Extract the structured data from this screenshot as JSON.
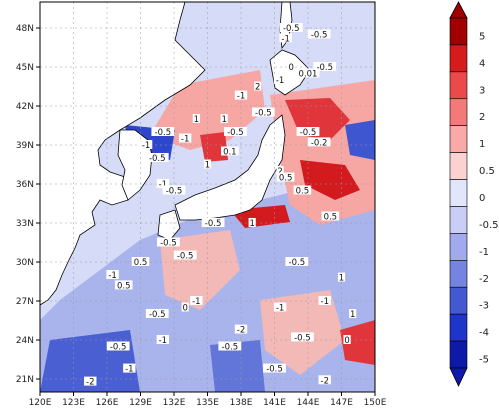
{
  "map": {
    "lon_ticks": [
      "120E",
      "123E",
      "126E",
      "129E",
      "132E",
      "135E",
      "138E",
      "141E",
      "144E",
      "147E",
      "150E"
    ],
    "lat_ticks": [
      "21N",
      "24N",
      "27N",
      "30N",
      "33N",
      "36N",
      "39N",
      "42N",
      "45N",
      "48N"
    ],
    "extent": {
      "lon": [
        120,
        150
      ],
      "lat": [
        20,
        50
      ]
    },
    "land_color": "#ffffff",
    "coastline_color": "#000000",
    "gridlines": "dashed"
  },
  "colorbar": {
    "labels": [
      "5",
      "4",
      "3",
      "2",
      "1",
      "0.5",
      "0",
      "-0.5",
      "-1",
      "-2",
      "-3",
      "-4",
      "-5"
    ],
    "colors": [
      "#a00000",
      "#d41c1c",
      "#ec4a4a",
      "#f47a7a",
      "#f8aaa8",
      "#fbd2d0",
      "#e2e6fb",
      "#c8cef5",
      "#a0aaec",
      "#7484e0",
      "#4458d2",
      "#1f34c8",
      "#0d1aa8"
    ]
  },
  "contour_labels": [
    {
      "t": "-0.5",
      "lon": 142.5,
      "lat": 48.0
    },
    {
      "t": "-0.5",
      "lon": 145.0,
      "lat": 47.5
    },
    {
      "t": "-1",
      "lon": 142.0,
      "lat": 47.2
    },
    {
      "t": "0",
      "lon": 142.5,
      "lat": 45.0
    },
    {
      "t": "-0.5",
      "lon": 145.5,
      "lat": 45.0
    },
    {
      "t": "-1",
      "lon": 141.5,
      "lat": 44.0
    },
    {
      "t": "0.01",
      "lon": 144.0,
      "lat": 44.5
    },
    {
      "t": "-0.5",
      "lon": 140.0,
      "lat": 41.5
    },
    {
      "t": "-1",
      "lon": 138.0,
      "lat": 42.8
    },
    {
      "t": "2",
      "lon": 139.5,
      "lat": 43.5
    },
    {
      "t": "-0.5",
      "lon": 144.0,
      "lat": 40.0
    },
    {
      "t": "-0.2",
      "lon": 145.0,
      "lat": 39.2
    },
    {
      "t": "-0.5",
      "lon": 131.0,
      "lat": 40.0
    },
    {
      "t": "-1",
      "lon": 133.0,
      "lat": 39.5
    },
    {
      "t": "1",
      "lon": 134.0,
      "lat": 41.0
    },
    {
      "t": "1",
      "lon": 136.5,
      "lat": 41.0
    },
    {
      "t": "-0.5",
      "lon": 137.5,
      "lat": 40.0
    },
    {
      "t": "0.1",
      "lon": 137.0,
      "lat": 38.5
    },
    {
      "t": "-1",
      "lon": 129.5,
      "lat": 39.0
    },
    {
      "t": "-0.5",
      "lon": 130.5,
      "lat": 38.0
    },
    {
      "t": "1",
      "lon": 135.0,
      "lat": 37.5
    },
    {
      "t": "2",
      "lon": 141.5,
      "lat": 37.0
    },
    {
      "t": "0.5",
      "lon": 142.0,
      "lat": 36.5
    },
    {
      "t": "-1",
      "lon": 131.0,
      "lat": 36.0
    },
    {
      "t": "-0.5",
      "lon": 132.0,
      "lat": 35.5
    },
    {
      "t": "0.5",
      "lon": 143.5,
      "lat": 35.5
    },
    {
      "t": "-0.5",
      "lon": 135.5,
      "lat": 33.0
    },
    {
      "t": "1",
      "lon": 139.0,
      "lat": 33.0
    },
    {
      "t": "0.5",
      "lon": 146.0,
      "lat": 33.5
    },
    {
      "t": "-0.5",
      "lon": 131.5,
      "lat": 31.5
    },
    {
      "t": "-0.5",
      "lon": 133.0,
      "lat": 30.5
    },
    {
      "t": "0.5",
      "lon": 129.0,
      "lat": 30.0
    },
    {
      "t": "-0.5",
      "lon": 143.0,
      "lat": 30.0
    },
    {
      "t": "1",
      "lon": 147.0,
      "lat": 28.8
    },
    {
      "t": "-1",
      "lon": 126.5,
      "lat": 29.0
    },
    {
      "t": "0.5",
      "lon": 127.5,
      "lat": 28.2
    },
    {
      "t": "-1",
      "lon": 134.0,
      "lat": 27.0
    },
    {
      "t": "0",
      "lon": 133.0,
      "lat": 26.5
    },
    {
      "t": "-0.5",
      "lon": 130.5,
      "lat": 26.0
    },
    {
      "t": "-1",
      "lon": 141.5,
      "lat": 26.5
    },
    {
      "t": "-1",
      "lon": 145.5,
      "lat": 27.0
    },
    {
      "t": "1",
      "lon": 148.0,
      "lat": 26.0
    },
    {
      "t": "-0.5",
      "lon": 127.0,
      "lat": 23.5
    },
    {
      "t": "-1",
      "lon": 131.0,
      "lat": 24.0
    },
    {
      "t": "-2",
      "lon": 138.0,
      "lat": 24.8
    },
    {
      "t": "-0.5",
      "lon": 143.5,
      "lat": 24.2
    },
    {
      "t": "-0.5",
      "lon": 137.0,
      "lat": 23.5
    },
    {
      "t": "0",
      "lon": 147.5,
      "lat": 24.0
    },
    {
      "t": "-1",
      "lon": 128.0,
      "lat": 21.8
    },
    {
      "t": "-2",
      "lon": 124.5,
      "lat": 20.8
    },
    {
      "t": "-2",
      "lon": 145.5,
      "lat": 20.9
    },
    {
      "t": "-0.5",
      "lon": 141.0,
      "lat": 21.8
    }
  ]
}
